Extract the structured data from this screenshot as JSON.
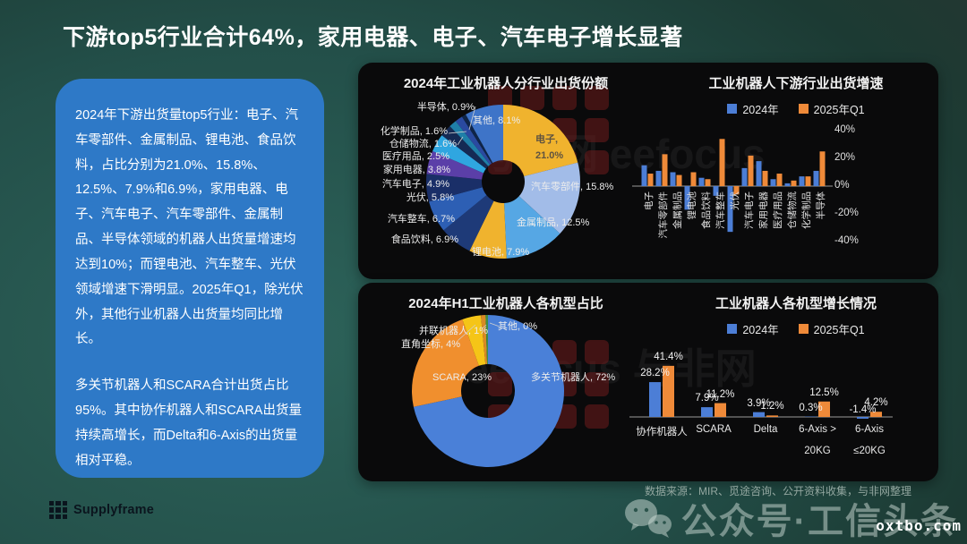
{
  "title": "下游top5行业合计64%，家用电器、电子、汽车电子增长显著",
  "summary_panel": {
    "paragraph1": "2024年下游出货量top5行业：电子、汽车零部件、金属制品、锂电池、食品饮料，占比分别为21.0%、15.8%、12.5%、7.9%和6.9%，家用电器、电子、汽车电子、汽车零部件、金属制品、半导体领域的机器人出货量增速均达到10%；而锂电池、汽车整车、光伏领域增速下滑明显。2025年Q1，除光伏外，其他行业机器人出货量均同比增长。",
    "paragraph2": "多关节机器人和SCARA合计出货占比95%。其中协作机器人和SCARA出货量持续高增长，而Delta和6-Axis的出货量相对平稳。"
  },
  "chart_data": [
    {
      "type": "pie",
      "title": "2024年工业机器人分行业出货份额",
      "labels": [
        "电子",
        "汽车零部件",
        "金属制品",
        "锂电池",
        "食品饮料",
        "汽车整车",
        "光伏",
        "汽车电子",
        "家用电器",
        "医疗用品",
        "仓储物流",
        "化学制品",
        "半导体",
        "其他"
      ],
      "values": [
        21.0,
        15.8,
        12.5,
        7.9,
        6.9,
        6.7,
        5.8,
        4.9,
        3.8,
        2.5,
        1.6,
        1.6,
        0.9,
        8.1
      ],
      "colors": [
        "#F0B32E",
        "#A2BCE8",
        "#56A7E4",
        "#F0B32E",
        "#1E3A78",
        "#2D5FB4",
        "#1A2F68",
        "#5B3FA8",
        "#2FA6E0",
        "#152A54",
        "#1F7FA8",
        "#2A4AA0",
        "#0F2548",
        "#3E74C8"
      ],
      "value_format": "1dp",
      "label_position": "outside",
      "legend_position": "none"
    },
    {
      "type": "bar",
      "title": "工业机器人下游行业出货增速",
      "legend": [
        "2024年",
        "2025年Q1"
      ],
      "series_colors": [
        "#4C7ED6",
        "#EF8A39"
      ],
      "categories": [
        "电子",
        "汽车零部件",
        "金属制品",
        "锂电池",
        "食品饮料",
        "汽车整车",
        "光伏",
        "汽车电子",
        "家用电器",
        "医疗用品",
        "仓储物流",
        "化学制品",
        "半导体"
      ],
      "series": [
        {
          "name": "2024年",
          "values": [
            15,
            11,
            10,
            -17,
            6,
            -7,
            -33,
            13,
            18,
            5,
            2,
            7,
            11
          ]
        },
        {
          "name": "2025年Q1",
          "values": [
            9,
            23,
            8,
            10,
            5,
            34,
            -6,
            22,
            11,
            9,
            4,
            7,
            25
          ]
        }
      ],
      "ylim": [
        -40,
        40
      ],
      "yticks": [
        "40%",
        "20%",
        "0%",
        "-20%",
        "-40%"
      ],
      "ytick_values": [
        40,
        20,
        0,
        -20,
        -40
      ],
      "grid": false,
      "data_labels": false,
      "legend_position": "top"
    },
    {
      "type": "donut",
      "title": "2024年H1工业机器人各机型占比",
      "labels": [
        "多关节机器人",
        "SCARA",
        "直角坐标",
        "并联机器人",
        "其他"
      ],
      "values": [
        72,
        23,
        4,
        1,
        0
      ],
      "colors": [
        "#4A80D8",
        "#F08F2E",
        "#F5C517",
        "#D88A26",
        "#3F8F42"
      ],
      "value_format": "0dp",
      "label_position": "outside",
      "legend_position": "none"
    },
    {
      "type": "bar",
      "title": "工业机器人各机型增长情况",
      "legend": [
        "2024年",
        "2025年Q1"
      ],
      "series_colors": [
        "#4C7ED6",
        "#EF8A39"
      ],
      "categories": [
        [
          "协作机器人"
        ],
        [
          "SCARA"
        ],
        [
          "Delta"
        ],
        [
          "6-Axis >",
          "20KG"
        ],
        [
          "6-Axis",
          "≤20KG"
        ]
      ],
      "series": [
        {
          "name": "2024年",
          "values": [
            28.2,
            7.9,
            3.9,
            0.3,
            -1.4
          ]
        },
        {
          "name": "2025年Q1",
          "values": [
            41.4,
            11.2,
            1.2,
            12.5,
            4.2
          ]
        }
      ],
      "ylim": [
        -5,
        45
      ],
      "grid": false,
      "data_labels": true,
      "value_format": "1dp",
      "legend_position": "top"
    }
  ],
  "watermarks": {
    "ghost1": "与非网 eefocus",
    "ghost2": "eefocus 与非网"
  },
  "footer": {
    "brand": "Supplyframe",
    "source": "数据来源：MIR、觅途咨询、公开资料收集，与非网整理",
    "wechat_watermark": "公众号·工信头条",
    "site": "oxtbo.com"
  }
}
